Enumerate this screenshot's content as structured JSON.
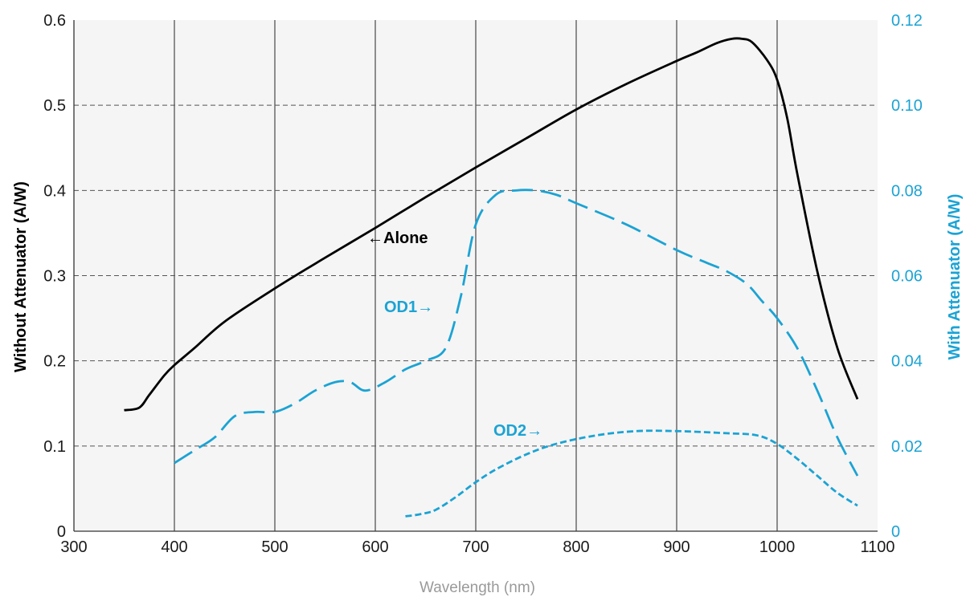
{
  "chart_data": {
    "type": "line",
    "xlabel": "Wavelength (nm)",
    "ylabel_left": "Without Attenuator (A/W)",
    "ylabel_right": "With Attenuator (A/W)",
    "xlim": [
      300,
      1100
    ],
    "ylim_left": [
      0,
      0.6
    ],
    "ylim_right": [
      0,
      0.12
    ],
    "x_ticks": [
      "300",
      "400",
      "500",
      "600",
      "700",
      "800",
      "900",
      "1000",
      "1100"
    ],
    "y_ticks_left": [
      "0",
      "0.1",
      "0.2",
      "0.3",
      "0.4",
      "0.5",
      "0.6"
    ],
    "y_ticks_right": [
      "0",
      "0.02",
      "0.04",
      "0.06",
      "0.08",
      "0.10",
      "0.12"
    ],
    "grid": {
      "vertical": true,
      "horizontal_dashed": true
    },
    "colors": {
      "alone": "#000000",
      "attenuated": "#1ba3d4",
      "plot_bg": "#f5f5f5",
      "grid": "#555555"
    },
    "series": [
      {
        "name": "Alone",
        "axis": "left",
        "style": "solid",
        "x": [
          350,
          365,
          375,
          390,
          400,
          420,
          450,
          500,
          550,
          600,
          650,
          700,
          750,
          800,
          850,
          900,
          920,
          940,
          955,
          965,
          975,
          990,
          1000,
          1010,
          1020,
          1040,
          1060,
          1080
        ],
        "y": [
          0.142,
          0.145,
          0.16,
          0.183,
          0.195,
          0.215,
          0.246,
          0.285,
          0.321,
          0.356,
          0.392,
          0.427,
          0.461,
          0.495,
          0.525,
          0.552,
          0.562,
          0.573,
          0.578,
          0.578,
          0.574,
          0.553,
          0.53,
          0.485,
          0.42,
          0.305,
          0.215,
          0.155
        ]
      },
      {
        "name": "OD1",
        "axis": "right",
        "style": "dash-long",
        "x": [
          400,
          420,
          440,
          460,
          480,
          500,
          520,
          540,
          560,
          575,
          590,
          610,
          630,
          650,
          670,
          685,
          700,
          720,
          740,
          760,
          780,
          800,
          850,
          900,
          930,
          950,
          970,
          985,
          1000,
          1020,
          1040,
          1060,
          1080
        ],
        "y": [
          0.016,
          0.019,
          0.022,
          0.027,
          0.028,
          0.028,
          0.03,
          0.033,
          0.035,
          0.035,
          0.033,
          0.035,
          0.038,
          0.04,
          0.043,
          0.055,
          0.072,
          0.079,
          0.08,
          0.08,
          0.079,
          0.077,
          0.072,
          0.066,
          0.063,
          0.061,
          0.058,
          0.054,
          0.05,
          0.043,
          0.033,
          0.022,
          0.013
        ]
      },
      {
        "name": "OD2",
        "axis": "right",
        "style": "dash-short",
        "x": [
          630,
          645,
          660,
          680,
          700,
          720,
          750,
          780,
          820,
          860,
          900,
          950,
          980,
          1000,
          1020,
          1040,
          1060,
          1080
        ],
        "y": [
          0.0035,
          0.004,
          0.005,
          0.008,
          0.0115,
          0.0145,
          0.018,
          0.0205,
          0.0225,
          0.0235,
          0.0235,
          0.023,
          0.0225,
          0.0205,
          0.017,
          0.013,
          0.009,
          0.006
        ]
      }
    ],
    "annotations": [
      {
        "label": "Alone",
        "arrow": "←",
        "series": "Alone"
      },
      {
        "label": "OD1",
        "arrow": "→",
        "series": "OD1"
      },
      {
        "label": "OD2",
        "arrow": "→",
        "series": "OD2"
      }
    ]
  }
}
